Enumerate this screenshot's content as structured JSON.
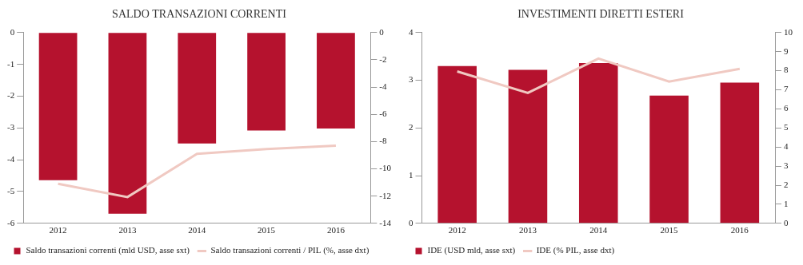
{
  "chart_data": [
    {
      "type": "bar",
      "title": "SALDO TRANSAZIONI CORRENTI",
      "categories": [
        "2012",
        "2013",
        "2014",
        "2015",
        "2016"
      ],
      "series": [
        {
          "name": "Saldo transazioni correnti (mld USD, asse sxt)",
          "color": "#b5122e",
          "type": "bar",
          "values": [
            -4.64,
            -5.7,
            -3.49,
            -3.08,
            -3.02
          ]
        },
        {
          "name": "Saldo transazioni correnti / PIL (%, asse dxt)",
          "color": "#f0c9c2",
          "type": "line",
          "axis": "y2",
          "values": [
            -11.1,
            -12.07,
            -8.9,
            -8.55,
            -8.3
          ]
        }
      ],
      "ylim": [
        -6,
        0
      ],
      "yticks": [
        -6,
        -5,
        -4,
        -3,
        -2,
        -1,
        0
      ],
      "y2lim": [
        -14,
        0
      ],
      "y2ticks": [
        -14,
        -12,
        -10,
        -8,
        -6,
        -4,
        -2,
        0
      ],
      "grid": false,
      "legend": "bottom"
    },
    {
      "type": "bar",
      "title": "INVESTIMENTI DIRETTI ESTERI",
      "categories": [
        "2012",
        "2013",
        "2014",
        "2015",
        "2016"
      ],
      "series": [
        {
          "name": "IDE (USD mld, asse sxt)",
          "color": "#b5122e",
          "type": "bar",
          "values": [
            3.3,
            3.22,
            3.36,
            2.68,
            2.95
          ]
        },
        {
          "name": "IDE (% PIL, asse dxt)",
          "color": "#f0c9c2",
          "type": "line",
          "axis": "y2",
          "values": [
            7.96,
            6.84,
            8.64,
            7.43,
            8.1
          ]
        }
      ],
      "ylim": [
        0,
        4
      ],
      "yticks": [
        0,
        1,
        2,
        3,
        4
      ],
      "y2lim": [
        0,
        10
      ],
      "y2ticks": [
        0,
        1,
        2,
        3,
        4,
        5,
        6,
        7,
        8,
        9,
        10
      ],
      "grid": false,
      "legend": "bottom"
    }
  ]
}
